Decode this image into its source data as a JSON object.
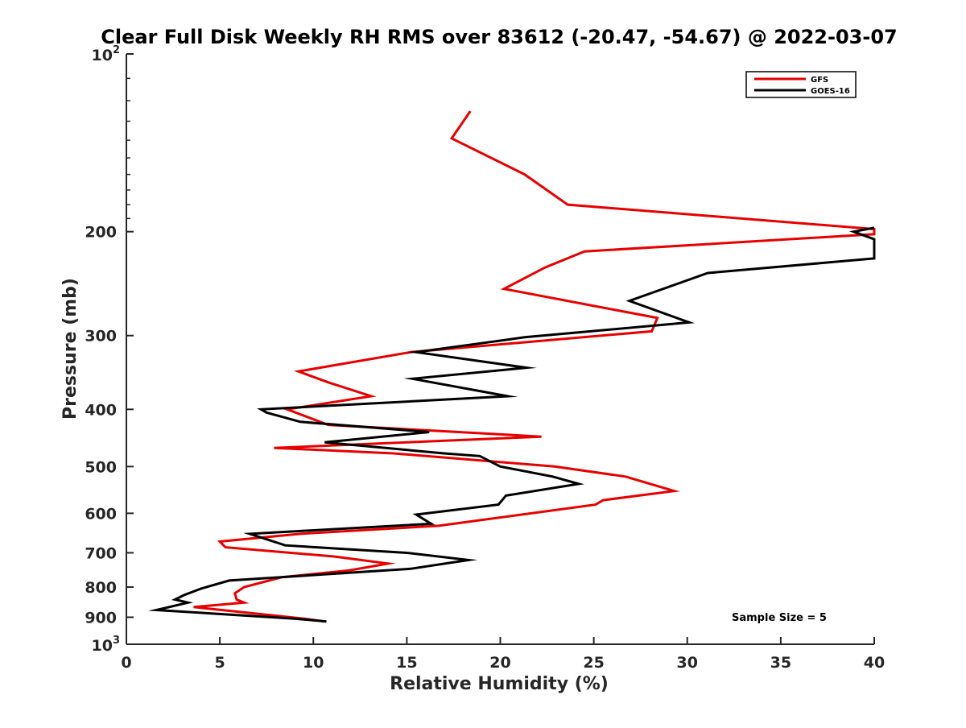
{
  "chart_data": {
    "type": "line",
    "title": "Clear Full Disk Weekly RH RMS over 83612 (-20.47, -54.67) @ 2022-03-07",
    "xlabel": "Relative Humidity (%)",
    "ylabel": "Pressure (mb)",
    "xlim": [
      0,
      40
    ],
    "ylim": [
      100,
      1000
    ],
    "y_scale": "log",
    "y_reversed": true,
    "grid": false,
    "legend_position": "top-right",
    "x_ticks": [
      "0",
      "5",
      "10",
      "15",
      "20",
      "25",
      "30",
      "35",
      "40"
    ],
    "y_ticks": [
      {
        "value": 100,
        "base": "10",
        "exp": "2"
      },
      {
        "value": 200,
        "label": "200"
      },
      {
        "value": 300,
        "label": "300"
      },
      {
        "value": 400,
        "label": "400"
      },
      {
        "value": 500,
        "label": "500"
      },
      {
        "value": 600,
        "label": "600"
      },
      {
        "value": 700,
        "label": "700"
      },
      {
        "value": 800,
        "label": "800"
      },
      {
        "value": 900,
        "label": "900"
      },
      {
        "value": 1000,
        "base": "10",
        "exp": "3"
      }
    ],
    "annotation": "Sample Size = 5",
    "series": [
      {
        "name": "GFS",
        "color": "#e60000",
        "points": [
          [
            18.4,
            125
          ],
          [
            17.4,
            139
          ],
          [
            21.3,
            160
          ],
          [
            23.6,
            180
          ],
          [
            40.0,
            198
          ],
          [
            40.0,
            202
          ],
          [
            24.5,
            216
          ],
          [
            22.4,
            230
          ],
          [
            20.2,
            250
          ],
          [
            28.4,
            280
          ],
          [
            28.1,
            295
          ],
          [
            15.2,
            320
          ],
          [
            9.2,
            345
          ],
          [
            10.8,
            360
          ],
          [
            13.1,
            380
          ],
          [
            8.6,
            400
          ],
          [
            10.8,
            425
          ],
          [
            22.2,
            445
          ],
          [
            7.9,
            465
          ],
          [
            14.3,
            475
          ],
          [
            22.9,
            500
          ],
          [
            26.7,
            520
          ],
          [
            29.3,
            550
          ],
          [
            25.5,
            570
          ],
          [
            25.1,
            580
          ],
          [
            16.7,
            630
          ],
          [
            9.3,
            650
          ],
          [
            5.0,
            670
          ],
          [
            5.3,
            685
          ],
          [
            11.1,
            710
          ],
          [
            14.0,
            730
          ],
          [
            11.9,
            750
          ],
          [
            8.3,
            770
          ],
          [
            6.3,
            800
          ],
          [
            5.8,
            820
          ],
          [
            5.9,
            840
          ],
          [
            6.3,
            850
          ],
          [
            3.6,
            865
          ],
          [
            9.5,
            905
          ],
          [
            10.6,
            915
          ]
        ]
      },
      {
        "name": "GOES-16",
        "color": "#000000",
        "points": [
          [
            40.0,
            197
          ],
          [
            38.9,
            200
          ],
          [
            40.0,
            206
          ],
          [
            40.0,
            222
          ],
          [
            31.1,
            235
          ],
          [
            26.9,
            262
          ],
          [
            30.1,
            285
          ],
          [
            21.3,
            302
          ],
          [
            15.5,
            320
          ],
          [
            21.4,
            340
          ],
          [
            15.3,
            355
          ],
          [
            20.4,
            380
          ],
          [
            7.2,
            400
          ],
          [
            7.5,
            405
          ],
          [
            9.3,
            420
          ],
          [
            16.2,
            437
          ],
          [
            10.6,
            455
          ],
          [
            17.0,
            475
          ],
          [
            18.9,
            480
          ],
          [
            20.0,
            500
          ],
          [
            22.8,
            520
          ],
          [
            24.2,
            535
          ],
          [
            20.3,
            560
          ],
          [
            19.9,
            580
          ],
          [
            15.5,
            603
          ],
          [
            16.3,
            625
          ],
          [
            6.6,
            650
          ],
          [
            8.5,
            680
          ],
          [
            15.0,
            700
          ],
          [
            18.3,
            720
          ],
          [
            15.2,
            745
          ],
          [
            5.5,
            780
          ],
          [
            4.0,
            805
          ],
          [
            3.1,
            825
          ],
          [
            2.6,
            840
          ],
          [
            3.3,
            850
          ],
          [
            1.6,
            875
          ],
          [
            9.0,
            905
          ],
          [
            10.7,
            915
          ]
        ]
      }
    ]
  }
}
